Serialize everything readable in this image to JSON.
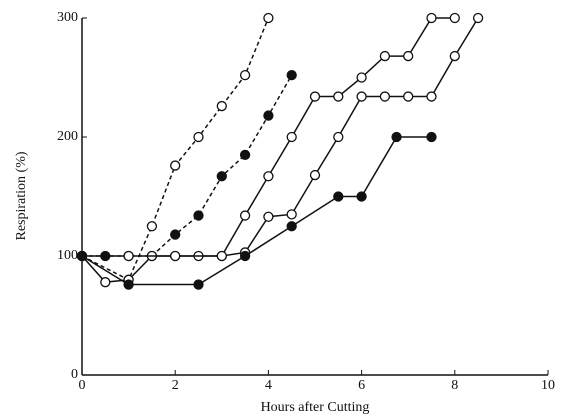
{
  "chart_data": {
    "type": "line",
    "xlabel": "Hours after Cutting",
    "ylabel": "Respiration (%)",
    "xlim": [
      0,
      10
    ],
    "xticks": [
      0,
      2,
      4,
      6,
      8,
      10
    ],
    "ylim": [
      0,
      300
    ],
    "yticks": [
      0,
      100,
      200,
      300
    ],
    "series": [
      {
        "color": "#111111",
        "dashed": true,
        "marker": "open",
        "x": [
          0,
          1,
          1.5,
          2,
          2.5,
          3,
          3.5,
          4
        ],
        "values": [
          100,
          80,
          125,
          176,
          200,
          226,
          252,
          300
        ]
      },
      {
        "color": "#111111",
        "dashed": true,
        "marker": "filled",
        "x": [
          0,
          0.5,
          1,
          1.5,
          2,
          2.5,
          3,
          3.5,
          4,
          4.5
        ],
        "values": [
          100,
          100,
          100,
          100,
          118,
          134,
          167,
          185,
          218,
          252
        ]
      },
      {
        "color": "#111111",
        "dashed": false,
        "marker": "open",
        "x": [
          0,
          0.5,
          1,
          1.5,
          2,
          2.5,
          3,
          3.5,
          4,
          4.5,
          5,
          5.5,
          6,
          6.5,
          7,
          7.5,
          8
        ],
        "values": [
          100,
          78,
          80,
          100,
          100,
          100,
          100,
          134,
          167,
          200,
          234,
          234,
          250,
          268,
          268,
          300,
          300
        ]
      },
      {
        "color": "#111111",
        "dashed": false,
        "marker": "open",
        "x": [
          0,
          1,
          2,
          3,
          3.5,
          4,
          4.5,
          5,
          5.5,
          6,
          6.5,
          7,
          7.5,
          8,
          8.5
        ],
        "values": [
          100,
          100,
          100,
          100,
          103,
          133,
          135,
          168,
          200,
          234,
          234,
          234,
          234,
          268,
          300
        ]
      },
      {
        "color": "#111111",
        "dashed": false,
        "marker": "filled",
        "x": [
          0,
          1,
          2.5,
          3.5,
          4.5,
          5.5,
          6,
          6.75,
          7.5
        ],
        "values": [
          100,
          76,
          76,
          100,
          125,
          150,
          150,
          200,
          200
        ]
      }
    ]
  }
}
